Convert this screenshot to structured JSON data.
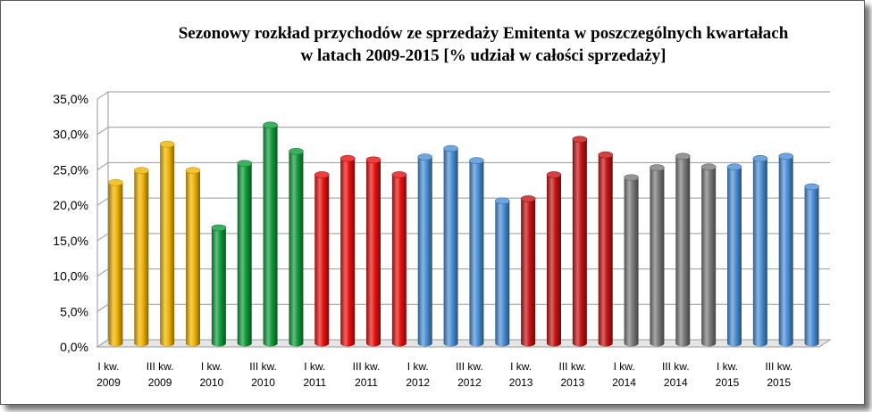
{
  "chart_data": {
    "type": "bar",
    "title_line1": "Sezonowy rozkład  przychodów  ze sprzedaży  Emitenta  w poszczególnych  kwartałach",
    "title_line2": "w latach 2009-2015 [% udział  w całości sprzedaży]",
    "xlabel": "",
    "ylabel": "",
    "ylim": [
      0,
      35
    ],
    "yticks": [
      "0,0%",
      "5,0%",
      "10,0%",
      "15,0%",
      "20,0%",
      "25,0%",
      "30,0%",
      "35,0%"
    ],
    "grid": true,
    "legend": "none",
    "x_tick_labels": [
      [
        "I kw.",
        "2009"
      ],
      [
        "III kw.",
        "2009"
      ],
      [
        "I kw.",
        "2010"
      ],
      [
        "III kw.",
        "2010"
      ],
      [
        "I kw.",
        "2011"
      ],
      [
        "III kw.",
        "2011"
      ],
      [
        "I kw.",
        "2012"
      ],
      [
        "III kw.",
        "2012"
      ],
      [
        "I kw.",
        "2013"
      ],
      [
        "III kw.",
        "2013"
      ],
      [
        "I kw.",
        "2014"
      ],
      [
        "III kw.",
        "2014"
      ],
      [
        "I kw.",
        "2015"
      ],
      [
        "III kw.",
        "2015"
      ]
    ],
    "values": [
      22.7,
      24.4,
      28.1,
      24.4,
      16.3,
      25.4,
      30.8,
      27.1,
      23.8,
      26.1,
      25.9,
      23.8,
      26.3,
      27.5,
      25.8,
      20.1,
      20.4,
      23.8,
      28.8,
      26.6,
      23.4,
      24.8,
      26.4,
      24.9,
      24.9,
      26.1,
      26.4,
      22.1
    ],
    "bar_colors": [
      "#f0b400",
      "#f0b400",
      "#f0b400",
      "#f0b400",
      "#0f9b3a",
      "#0f9b3a",
      "#0f9b3a",
      "#0f9b3a",
      "#e81010",
      "#e81010",
      "#e81010",
      "#e81010",
      "#4a8fd6",
      "#4a8fd6",
      "#4a8fd6",
      "#4a8fd6",
      "#c41414",
      "#c41414",
      "#c41414",
      "#c41414",
      "#7a7a7a",
      "#7a7a7a",
      "#7a7a7a",
      "#7a7a7a",
      "#4a8fd6",
      "#4a8fd6",
      "#4a8fd6",
      "#4a8fd6"
    ]
  }
}
